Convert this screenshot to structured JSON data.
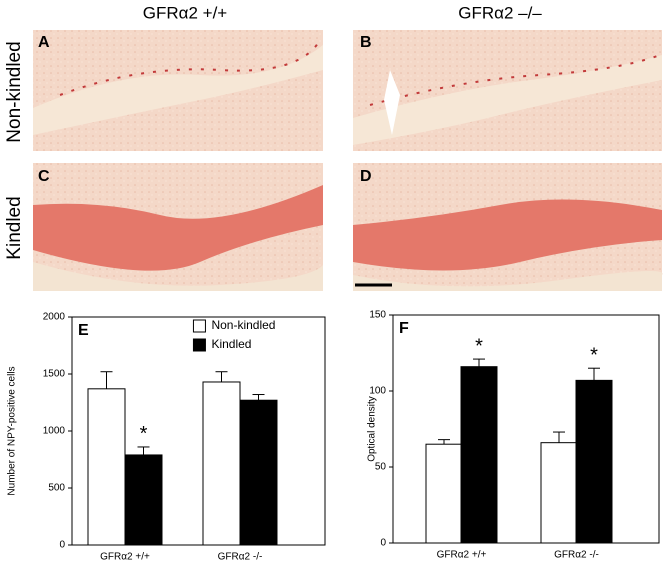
{
  "columns": [
    "GFRα2 +/+",
    "GFRα2 –/–"
  ],
  "rows": [
    "Non-kindled",
    "Kindled"
  ],
  "panels": [
    "A",
    "B",
    "C",
    "D"
  ],
  "chart_data": [
    {
      "type": "bar",
      "panel": "E",
      "ylabel": "Number of NPY-positive cells",
      "categories": [
        "GFRα2 +/+",
        "GFRα2 -/-"
      ],
      "series": [
        {
          "name": "Non-kindled",
          "color": "#ffffff",
          "values": [
            1370,
            1430
          ],
          "errors": [
            150,
            90
          ]
        },
        {
          "name": "Kindled",
          "color": "#000000",
          "values": [
            790,
            1270
          ],
          "errors": [
            70,
            50
          ],
          "annotations": [
            "*",
            null
          ]
        }
      ],
      "ylim": [
        0,
        2000
      ],
      "yticks": [
        0,
        500,
        1000,
        1500,
        2000
      ],
      "legend": "top-right"
    },
    {
      "type": "bar",
      "panel": "F",
      "ylabel": "Optical density",
      "categories": [
        "GFRα2 +/+",
        "GFRα2 -/-"
      ],
      "series": [
        {
          "color": "#ffffff",
          "values": [
            65,
            66
          ],
          "errors": [
            3,
            7
          ]
        },
        {
          "color": "#000000",
          "values": [
            116,
            107
          ],
          "errors": [
            5,
            8
          ],
          "annotations": [
            "*",
            "*"
          ]
        }
      ],
      "ylim": [
        0,
        150
      ],
      "yticks": [
        0,
        50,
        100,
        150
      ]
    }
  ]
}
